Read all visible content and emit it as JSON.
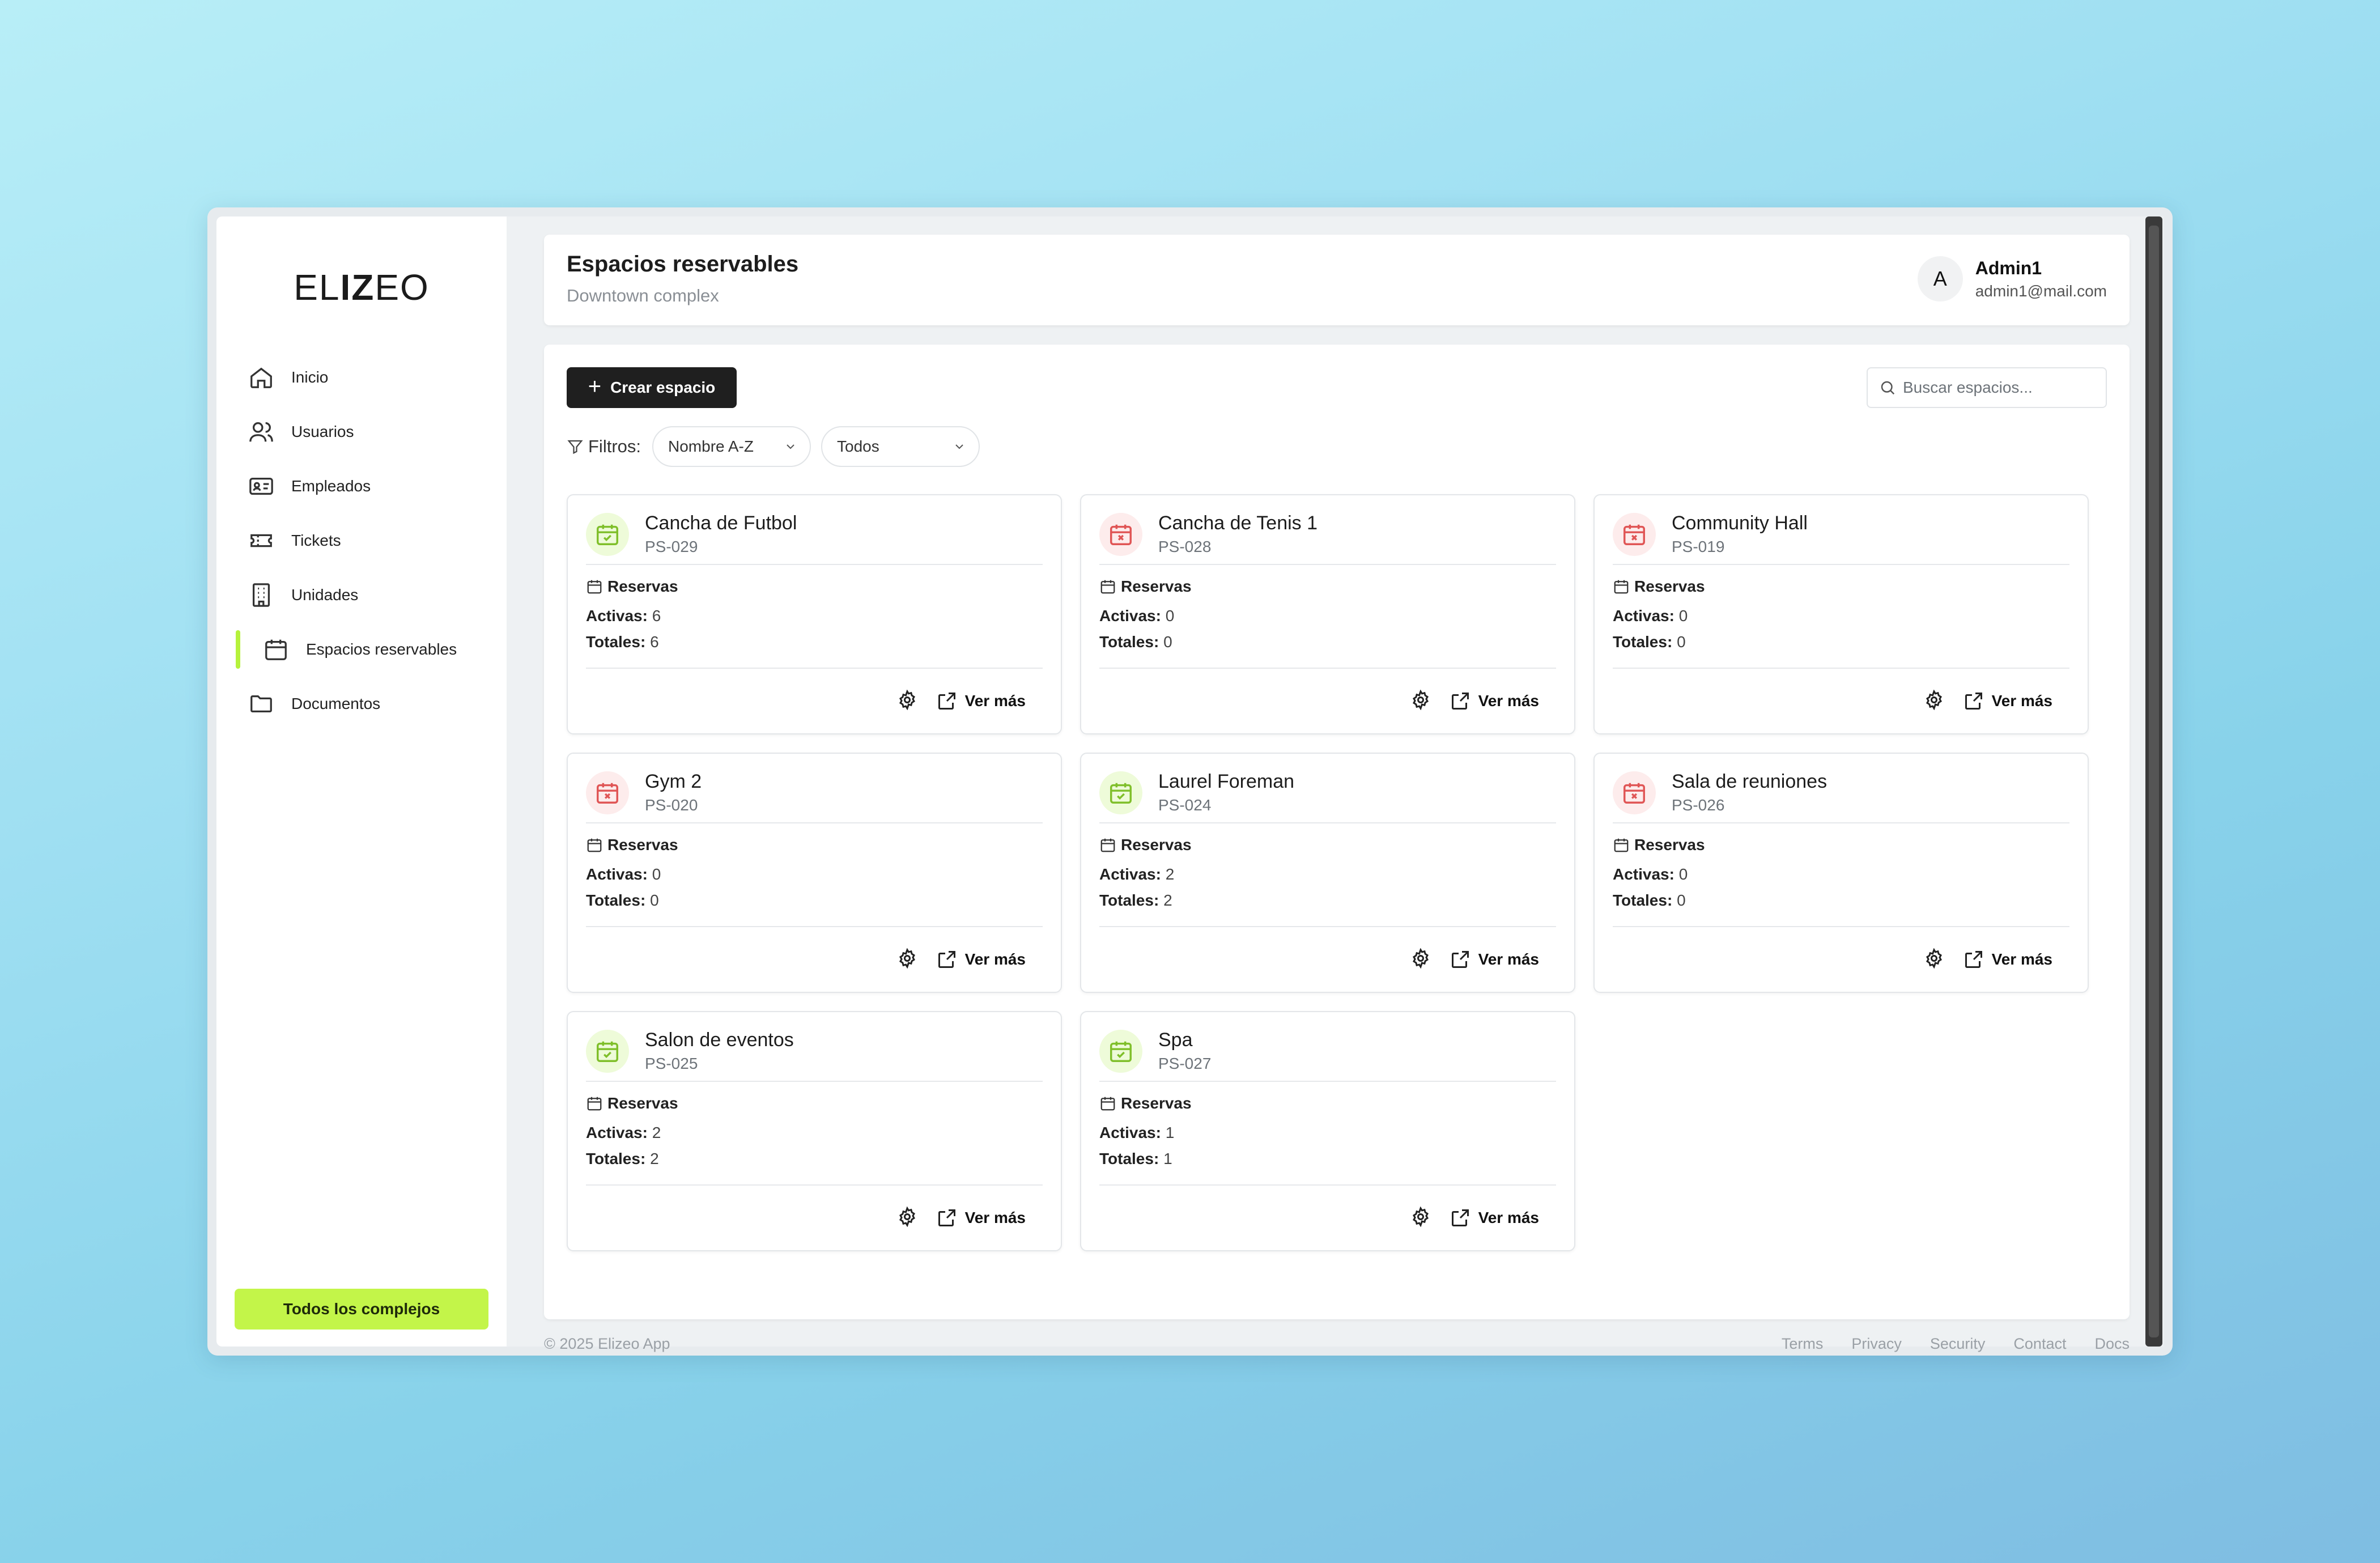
{
  "app": {
    "logo": "ELIZEO"
  },
  "sidebar": {
    "items": [
      {
        "label": "Inicio",
        "icon": "home-icon"
      },
      {
        "label": "Usuarios",
        "icon": "users-icon"
      },
      {
        "label": "Empleados",
        "icon": "id-card-icon"
      },
      {
        "label": "Tickets",
        "icon": "ticket-icon"
      },
      {
        "label": "Unidades",
        "icon": "building-icon"
      },
      {
        "label": "Espacios reservables",
        "icon": "calendar-icon",
        "active": true
      },
      {
        "label": "Documentos",
        "icon": "folder-icon"
      }
    ],
    "all_complexes_label": "Todos los complejos"
  },
  "header": {
    "title": "Espacios reservables",
    "subtitle": "Downtown complex",
    "user": {
      "initial": "A",
      "name": "Admin1",
      "email": "admin1@mail.com"
    }
  },
  "toolbar": {
    "create_label": "Crear espacio",
    "search_placeholder": "Buscar espacios...",
    "filters_label": "Filtros:",
    "sort_value": "Nombre A-Z",
    "status_value": "Todos"
  },
  "card_labels": {
    "reservations": "Reservas",
    "active": "Activas:",
    "total": "Totales:",
    "more": "Ver más"
  },
  "spaces": [
    {
      "name": "Cancha de Futbol",
      "code": "PS-029",
      "active": 6,
      "total": 6,
      "status": "available"
    },
    {
      "name": "Cancha de Tenis 1",
      "code": "PS-028",
      "active": 0,
      "total": 0,
      "status": "unavailable"
    },
    {
      "name": "Community Hall",
      "code": "PS-019",
      "active": 0,
      "total": 0,
      "status": "unavailable"
    },
    {
      "name": "Gym 2",
      "code": "PS-020",
      "active": 0,
      "total": 0,
      "status": "unavailable"
    },
    {
      "name": "Laurel Foreman",
      "code": "PS-024",
      "active": 2,
      "total": 2,
      "status": "available"
    },
    {
      "name": "Sala de reuniones",
      "code": "PS-026",
      "active": 0,
      "total": 0,
      "status": "unavailable"
    },
    {
      "name": "Salon de eventos",
      "code": "PS-025",
      "active": 2,
      "total": 2,
      "status": "available"
    },
    {
      "name": "Spa",
      "code": "PS-027",
      "active": 1,
      "total": 1,
      "status": "available"
    }
  ],
  "colors": {
    "accent": "#c3f549",
    "available": "#7fbf2a",
    "unavailable": "#e05555",
    "primary_button": "#1f1f1f"
  },
  "footer": {
    "copyright": "© 2025 Elizeo App",
    "links": [
      "Terms",
      "Privacy",
      "Security",
      "Contact",
      "Docs"
    ]
  }
}
